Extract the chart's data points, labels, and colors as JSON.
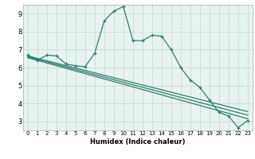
{
  "xlabel": "Humidex (Indice chaleur)",
  "bg_color": "#ffffff",
  "plot_bg_color": "#e8f4f0",
  "grid_color": "#c8dcd8",
  "line_color": "#2e7d6e",
  "xlim": [
    -0.5,
    23.5
  ],
  "ylim": [
    2.5,
    9.5
  ],
  "yticks": [
    3,
    4,
    5,
    6,
    7,
    8,
    9
  ],
  "xticks": [
    0,
    1,
    2,
    3,
    4,
    5,
    6,
    7,
    8,
    9,
    10,
    11,
    12,
    13,
    14,
    15,
    16,
    17,
    18,
    19,
    20,
    21,
    22,
    23
  ],
  "main_x": [
    0,
    1,
    2,
    3,
    4,
    5,
    6,
    7,
    8,
    9,
    10,
    11,
    12,
    13,
    14,
    15,
    16,
    17,
    18,
    19,
    20,
    21,
    22,
    23
  ],
  "main_y": [
    6.7,
    6.4,
    6.7,
    6.65,
    6.2,
    6.1,
    6.05,
    6.8,
    8.6,
    9.15,
    9.4,
    7.5,
    7.5,
    7.8,
    7.75,
    7.0,
    6.0,
    5.3,
    4.9,
    4.2,
    3.5,
    3.3,
    2.65,
    3.05
  ],
  "line1_x": [
    0,
    23
  ],
  "line1_y": [
    6.65,
    3.55
  ],
  "line2_x": [
    0,
    23
  ],
  "line2_y": [
    6.6,
    3.35
  ],
  "line3_x": [
    0,
    23
  ],
  "line3_y": [
    6.55,
    3.15
  ]
}
